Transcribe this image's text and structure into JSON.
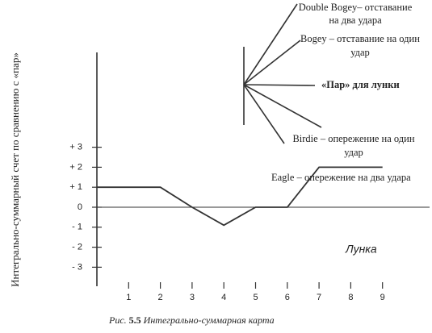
{
  "chart_data": {
    "type": "line",
    "ylabel": "Интегрально-суммарный счет по сравнению с «пар»",
    "xlabel": "Лунка",
    "categories": [
      null,
      "1",
      "2",
      "3",
      "4",
      "5",
      "6",
      "7",
      "8",
      "9"
    ],
    "values": [
      1,
      1,
      1,
      0,
      -0.9,
      0,
      0,
      2,
      2,
      2
    ],
    "color": "#333333",
    "ylim": [
      -4,
      7.75
    ],
    "yticks": [
      {
        "value": 3,
        "label": "+ 3"
      },
      {
        "value": 2,
        "label": "+ 2"
      },
      {
        "value": 1,
        "label": "+ 1"
      },
      0,
      {
        "value": -1,
        "label": "- 1"
      },
      {
        "value": -2,
        "label": "- 2"
      },
      {
        "value": -3,
        "label": "- 3"
      }
    ],
    "annotations": {
      "double_bogey": [
        "Double Bogey– отставание",
        "на два удара"
      ],
      "bogey": [
        "Bogey – отставание на один",
        "удар"
      ],
      "par": "«Пар» для лунки",
      "birdie": [
        "Birdie – опережение на один",
        "удар"
      ],
      "eagle": "Eagle – опережение на два удара"
    },
    "caption": {
      "prefix": "Рис.",
      "number": "5.5",
      "text": "Интегрально-суммарная карта"
    }
  }
}
